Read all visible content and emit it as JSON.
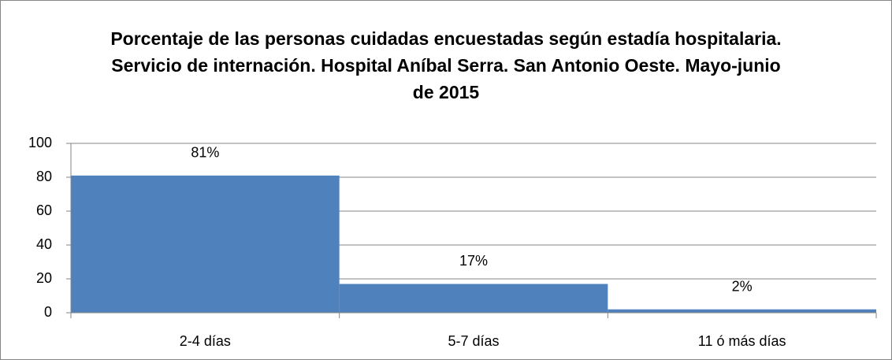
{
  "chart_data": {
    "type": "bar",
    "title": "Porcentaje de las personas cuidadas encuestadas según estadía hospitalaria. Servicio de internación. Hospital Aníbal Serra. San Antonio Oeste. Mayo-junio de 2015",
    "categories": [
      "2-4 días",
      "5-7 días",
      "11 ó más días"
    ],
    "values": [
      81,
      17,
      2
    ],
    "value_labels": [
      "81%",
      "17%",
      "2%"
    ],
    "color": "#4f81bd",
    "ylim": [
      0,
      100
    ],
    "yticks": [
      0,
      20,
      40,
      60,
      80,
      100
    ],
    "grid": true
  }
}
